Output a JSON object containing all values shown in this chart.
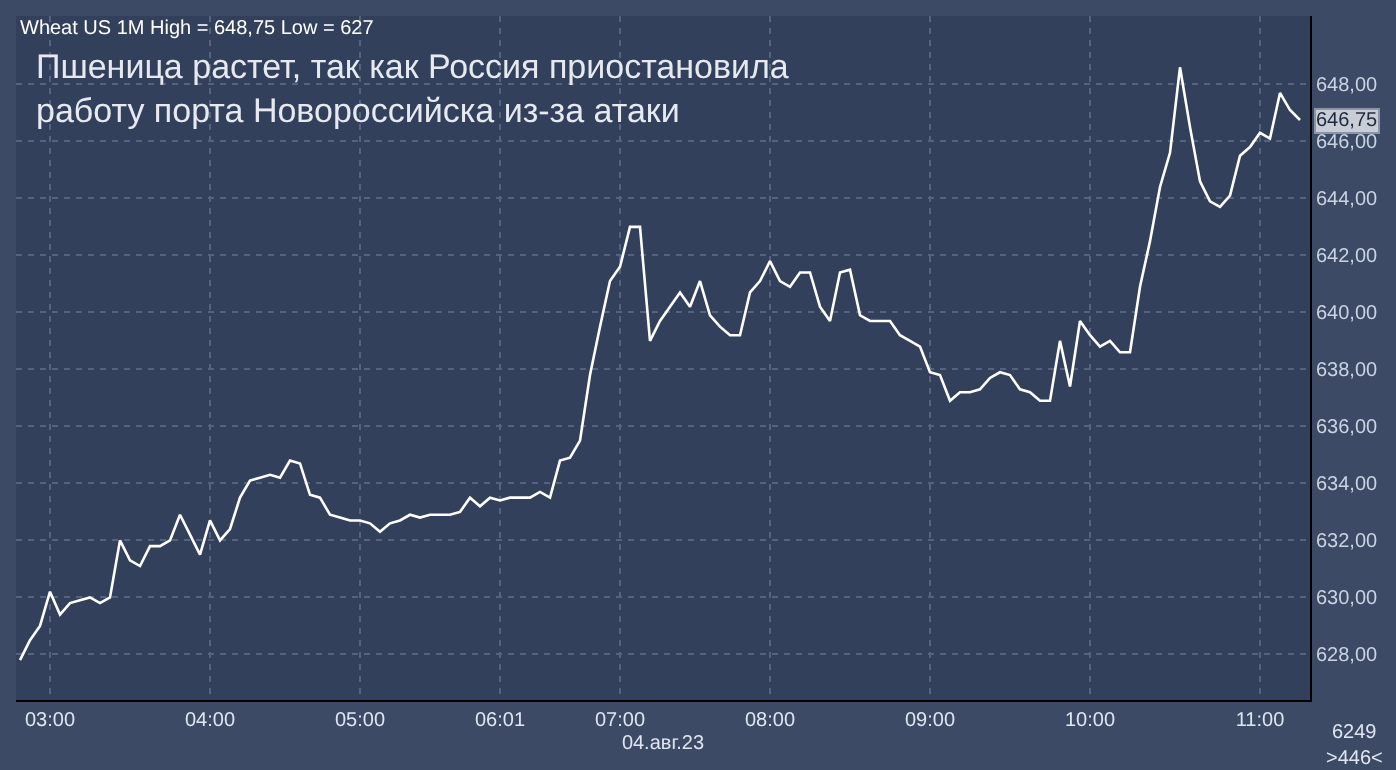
{
  "chart_data": {
    "type": "line",
    "title": "Пшеница растет, так как Россия приостановила\nработу порта Новороссийска из-за атаки",
    "subtitle": "Wheat US 1M High = 648,75 Low = 627",
    "xlabel": "04.авг.23",
    "categories": [
      null,
      null,
      null,
      "03:00",
      null,
      null,
      null,
      null,
      null,
      null,
      null,
      null,
      null,
      null,
      null,
      null,
      null,
      null,
      null,
      "04:00",
      null,
      null,
      null,
      null,
      null,
      null,
      null,
      null,
      null,
      null,
      null,
      null,
      null,
      null,
      "05:00",
      null,
      null,
      null,
      null,
      null,
      null,
      null,
      null,
      null,
      null,
      null,
      null,
      null,
      "06:01",
      null,
      null,
      null,
      null,
      null,
      null,
      null,
      null,
      null,
      null,
      null,
      "07:00",
      null,
      null,
      null,
      null,
      null,
      null,
      null,
      null,
      null,
      null,
      null,
      null,
      null,
      null,
      "08:00",
      null,
      null,
      null,
      null,
      null,
      null,
      null,
      null,
      null,
      null,
      null,
      null,
      null,
      null,
      null,
      "09:00",
      null,
      null,
      null,
      null,
      null,
      null,
      null,
      null,
      null,
      null,
      null,
      null,
      null,
      null,
      null,
      "10:00",
      null,
      null,
      null,
      null,
      null,
      null,
      null,
      null,
      null,
      null,
      null,
      null,
      null,
      null,
      null,
      null,
      "11:00",
      null,
      null,
      null,
      null
    ],
    "series": [
      {
        "color": "#ffffff",
        "values": [
          627.8,
          628.5,
          629,
          630.2,
          629.4,
          629.8,
          629.9,
          630,
          629.8,
          630,
          632,
          631.3,
          631.1,
          631.8,
          631.8,
          632,
          632.9,
          632.2,
          631.5,
          632.7,
          632,
          632.4,
          633.5,
          634.1,
          634.2,
          634.3,
          634.2,
          634.8,
          634.7,
          633.6,
          633.5,
          632.9,
          632.8,
          632.7,
          632.7,
          632.6,
          632.3,
          632.6,
          632.7,
          632.9,
          632.8,
          632.9,
          632.9,
          632.9,
          633,
          633.5,
          633.2,
          633.5,
          633.4,
          633.5,
          633.5,
          633.5,
          633.7,
          633.5,
          634.8,
          634.9,
          635.5,
          637.8,
          639.5,
          641.1,
          641.6,
          643,
          643,
          639,
          639.7,
          640.2,
          640.7,
          640.2,
          641.1,
          639.9,
          639.5,
          639.2,
          639.2,
          640.7,
          641.1,
          641.8,
          641.1,
          640.9,
          641.4,
          641.4,
          640.2,
          639.7,
          641.4,
          641.5,
          639.9,
          639.7,
          639.7,
          639.7,
          639.2,
          639,
          638.8,
          637.9,
          637.8,
          636.9,
          637.2,
          637.2,
          637.3,
          637.7,
          637.9,
          637.8,
          637.3,
          637.2,
          636.9,
          636.9,
          639,
          637.4,
          639.7,
          639.2,
          638.8,
          639,
          638.6,
          638.6,
          640.9,
          642.5,
          644.4,
          645.6,
          648.6,
          646.5,
          644.6,
          643.9,
          643.7,
          644.1,
          645.5,
          645.8,
          646.3,
          646.1,
          647.7,
          647.1,
          646.75
        ]
      }
    ],
    "ylim": [
      626.4,
      650.4
    ],
    "yticks": [
      {
        "value": 628,
        "label": "628,00"
      },
      {
        "value": 630,
        "label": "630,00"
      },
      {
        "value": 632,
        "label": "632,00"
      },
      {
        "value": 634,
        "label": "634,00"
      },
      {
        "value": 636,
        "label": "636,00"
      },
      {
        "value": 638,
        "label": "638,00"
      },
      {
        "value": 640,
        "label": "640,00"
      },
      {
        "value": 642,
        "label": "642,00"
      },
      {
        "value": 644,
        "label": "644,00"
      },
      {
        "value": 646,
        "label": "646,00"
      },
      {
        "value": 648,
        "label": "648,00"
      }
    ],
    "annotations": [
      {
        "text": "646,75",
        "y": 646.75
      },
      "6249",
      ">446<"
    ],
    "grid": true,
    "legend": false,
    "marker": "none",
    "line_style": "solid"
  }
}
